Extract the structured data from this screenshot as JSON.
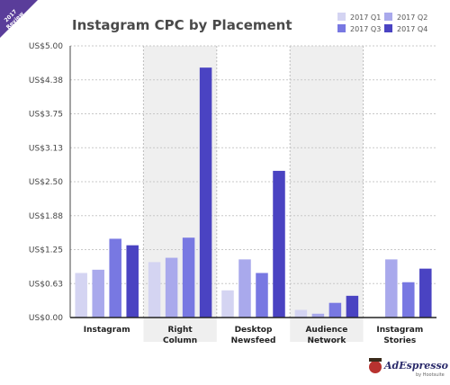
{
  "badge": {
    "line1": "2017",
    "line2": "Review",
    "color": "#5a3d9a"
  },
  "brand": {
    "name": "AdEspresso",
    "sub": "by Hootsuite"
  },
  "chart_data": {
    "type": "bar",
    "title": "Instagram CPC by Placement",
    "categories": [
      [
        "Instagram"
      ],
      [
        "Right",
        "Column"
      ],
      [
        "Desktop",
        "Newsfeed"
      ],
      [
        "Audience",
        "Network"
      ],
      [
        "Instagram",
        "Stories"
      ]
    ],
    "series": [
      {
        "name": "2017 Q1",
        "color": "#d4d4f2",
        "values": [
          0.82,
          1.02,
          0.5,
          0.14,
          null
        ]
      },
      {
        "name": "2017 Q2",
        "color": "#a9a9ec",
        "values": [
          0.88,
          1.1,
          1.07,
          0.07,
          1.07
        ]
      },
      {
        "name": "2017 Q3",
        "color": "#7878e2",
        "values": [
          1.45,
          1.47,
          0.82,
          0.27,
          0.65
        ]
      },
      {
        "name": "2017 Q4",
        "color": "#4a43c2",
        "values": [
          1.33,
          4.6,
          2.7,
          0.4,
          0.9
        ]
      }
    ],
    "yticks": [
      "US$0.00",
      "US$0.63",
      "US$1.25",
      "US$1.88",
      "US$2.50",
      "US$3.13",
      "US$3.75",
      "US$4.38",
      "US$5.00"
    ],
    "ylim": [
      0,
      5
    ],
    "shaded_categories": [
      1,
      3
    ],
    "grid": true,
    "legend": "top-right"
  }
}
